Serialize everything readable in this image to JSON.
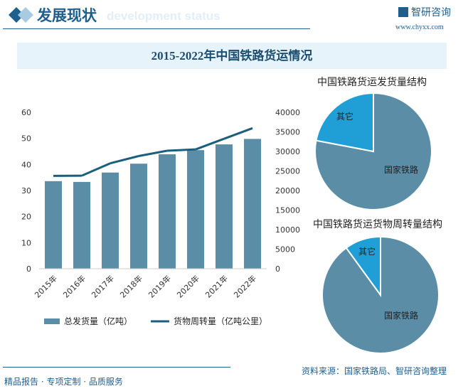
{
  "header": {
    "title": "发展现状",
    "subtitle": "development status",
    "logo": "智研咨询",
    "url": "www.chyxx.com"
  },
  "chart_title": "2015-2022年中国铁路货运情况",
  "footer": {
    "left": "精品报告 · 专项定制 · 品质服务",
    "source": "资料来源：国家铁路局、智研咨询整理"
  },
  "colors": {
    "bar": "#5b8ea6",
    "line": "#1b5e7e",
    "other": "#1f9fd6",
    "accent": "#1e5f8e"
  },
  "chart_data": [
    {
      "type": "bar+line",
      "categories": [
        "2015年",
        "2016年",
        "2017年",
        "2018年",
        "2019年",
        "2020年",
        "2021年",
        "2022年"
      ],
      "series": [
        {
          "name": "总发货量（亿吨）",
          "axis": "left",
          "type": "bar",
          "values": [
            33.6,
            33.3,
            36.9,
            40.3,
            43.9,
            45.5,
            47.7,
            49.8
          ]
        },
        {
          "name": "货物周转量（亿吨公里）",
          "axis": "right",
          "type": "line",
          "values": [
            23754,
            23792,
            26962,
            28821,
            30182,
            30514,
            33238,
            35946
          ]
        }
      ],
      "ylim_left": [
        0,
        60
      ],
      "yticks_left": [
        "0",
        "10",
        "20",
        "30",
        "40",
        "50",
        "60"
      ],
      "ylim_right": [
        0,
        40000
      ],
      "yticks_right": [
        "0",
        "5000",
        "10000",
        "15000",
        "20000",
        "25000",
        "30000",
        "35000",
        "40000"
      ],
      "legend": "bottom"
    },
    {
      "type": "pie",
      "title": "中国铁路货运发货量结构",
      "labels": [
        "国家铁路",
        "其它"
      ],
      "values": [
        78,
        22
      ]
    },
    {
      "type": "pie",
      "title": "中国铁路货运货物周转量结构",
      "labels": [
        "国家铁路",
        "其它"
      ],
      "values": [
        90,
        10
      ]
    }
  ]
}
